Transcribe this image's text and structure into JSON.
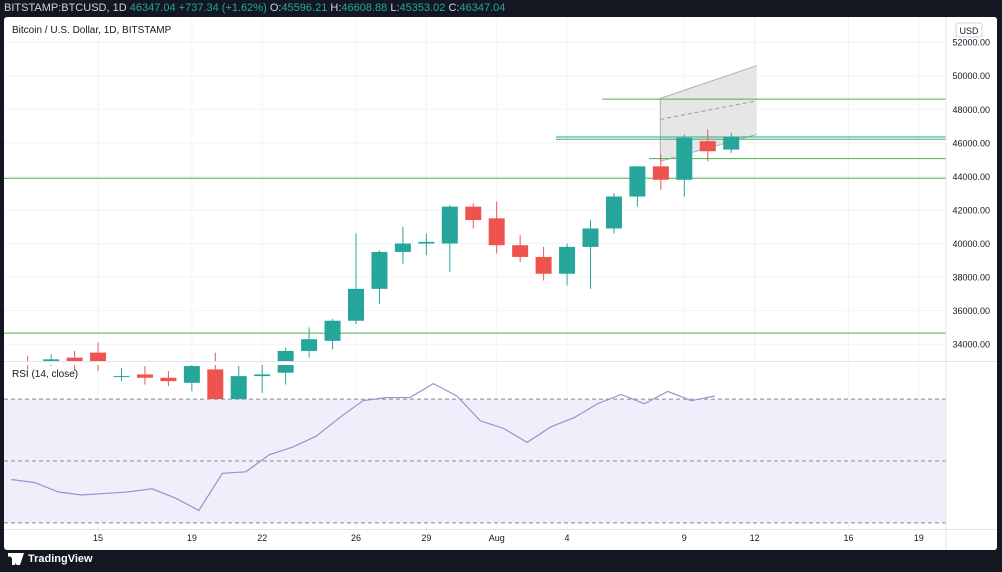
{
  "header": {
    "symbol": "BITSTAMP:BTCUSD, 1D",
    "last": "46347.04",
    "change": "+737.34 (+1.62%)",
    "o_label": "O:",
    "o": "45596.21",
    "h_label": "H:",
    "h": "46608.88",
    "l_label": "L:",
    "l": "45353.02",
    "c_label": "C:",
    "c": "46347.04"
  },
  "legend": "Bitcoin / U.S. Dollar, 1D, BITSTAMP",
  "currency_button": "USD",
  "rsi_label": "RSI (14, close)",
  "brand": "TradingView",
  "colors": {
    "up": "#26a69a",
    "down": "#ef5350",
    "level_line": "#4caf50",
    "rsi_line": "#9c8fce",
    "rsi_band": "#f1eefb"
  },
  "chart_data": [
    {
      "type": "candlestick",
      "ylim": [
        33000,
        53500
      ],
      "price_ticks": [
        34000,
        36000,
        38000,
        40000,
        42000,
        44000,
        46000,
        48000,
        50000,
        52000
      ],
      "x_ticks": [
        {
          "i": 3,
          "label": "15"
        },
        {
          "i": 7,
          "label": "19"
        },
        {
          "i": 10,
          "label": "22"
        },
        {
          "i": 14,
          "label": "26"
        },
        {
          "i": 17,
          "label": "29"
        },
        {
          "i": 20,
          "label": "Aug"
        },
        {
          "i": 23,
          "label": "4"
        },
        {
          "i": 28,
          "label": "9"
        },
        {
          "i": 31,
          "label": "12"
        },
        {
          "i": 35,
          "label": "16"
        },
        {
          "i": 38,
          "label": "19"
        }
      ],
      "candles": [
        {
          "o": 32900,
          "h": 33300,
          "l": 32500,
          "c": 32800
        },
        {
          "o": 33000,
          "h": 33400,
          "l": 32700,
          "c": 33100
        },
        {
          "o": 33200,
          "h": 33600,
          "l": 32400,
          "c": 33000
        },
        {
          "o": 33500,
          "h": 34100,
          "l": 32400,
          "c": 32800
        },
        {
          "o": 32100,
          "h": 32600,
          "l": 31800,
          "c": 32100
        },
        {
          "o": 32200,
          "h": 32700,
          "l": 31600,
          "c": 32000
        },
        {
          "o": 32000,
          "h": 32400,
          "l": 31500,
          "c": 31800
        },
        {
          "o": 31700,
          "h": 32900,
          "l": 31200,
          "c": 32700
        },
        {
          "o": 32500,
          "h": 33500,
          "l": 29300,
          "c": 29800
        },
        {
          "o": 29800,
          "h": 32700,
          "l": 29500,
          "c": 32100
        },
        {
          "o": 32100,
          "h": 32900,
          "l": 31100,
          "c": 32200
        },
        {
          "o": 32300,
          "h": 33800,
          "l": 31600,
          "c": 33600
        },
        {
          "o": 33600,
          "h": 35000,
          "l": 33200,
          "c": 34300
        },
        {
          "o": 34200,
          "h": 35500,
          "l": 33700,
          "c": 35400
        },
        {
          "o": 35400,
          "h": 40600,
          "l": 35200,
          "c": 37300
        },
        {
          "o": 37300,
          "h": 39600,
          "l": 36400,
          "c": 39500
        },
        {
          "o": 39500,
          "h": 41000,
          "l": 38800,
          "c": 40000
        },
        {
          "o": 40000,
          "h": 40600,
          "l": 39300,
          "c": 40100
        },
        {
          "o": 40000,
          "h": 42300,
          "l": 38300,
          "c": 42200
        },
        {
          "o": 42200,
          "h": 42400,
          "l": 40900,
          "c": 41400
        },
        {
          "o": 41500,
          "h": 42500,
          "l": 39400,
          "c": 39900
        },
        {
          "o": 39900,
          "h": 40500,
          "l": 38900,
          "c": 39200
        },
        {
          "o": 39200,
          "h": 39800,
          "l": 37800,
          "c": 38200
        },
        {
          "o": 38200,
          "h": 40000,
          "l": 37500,
          "c": 39800
        },
        {
          "o": 39800,
          "h": 41400,
          "l": 37300,
          "c": 40900
        },
        {
          "o": 40900,
          "h": 43000,
          "l": 40600,
          "c": 42800
        },
        {
          "o": 42800,
          "h": 44600,
          "l": 42200,
          "c": 44600
        },
        {
          "o": 44600,
          "h": 45300,
          "l": 43200,
          "c": 43800
        },
        {
          "o": 43800,
          "h": 46500,
          "l": 42800,
          "c": 46300
        },
        {
          "o": 46100,
          "h": 46800,
          "l": 44900,
          "c": 45500
        },
        {
          "o": 45600,
          "h": 46600,
          "l": 45400,
          "c": 46347
        }
      ],
      "price_levels": [
        {
          "value": 48607.6,
          "label": "48607.60",
          "kind": "level"
        },
        {
          "value": 46347.04,
          "label": "46347.04",
          "kind": "last"
        },
        {
          "value": 46215.3,
          "label": "46215.30",
          "kind": "level"
        },
        {
          "value": 45060.43,
          "label": "45060.43",
          "kind": "level"
        },
        {
          "value": 43889.11,
          "label": "43889.11",
          "kind": "level"
        },
        {
          "value": 34660.31,
          "label": "34660.31",
          "kind": "level"
        }
      ],
      "channel": {
        "start_index": 28,
        "end_index": 31,
        "upper_start": 48650,
        "upper_end": 50600,
        "mid_start": 47400,
        "mid_end": 48500,
        "lower_start": 44900,
        "lower_end": 46500
      }
    },
    {
      "type": "line",
      "name": "RSI (14, close)",
      "ylim": [
        28,
        82
      ],
      "ticks": [
        30.0,
        40.0,
        50.0,
        60.0,
        70.0,
        80.0
      ],
      "levels": [
        70,
        50,
        30
      ],
      "values": [
        44,
        43,
        40,
        39,
        39.5,
        40,
        41,
        38,
        34,
        46,
        46.5,
        52,
        54.5,
        58,
        64,
        69.5,
        70.5,
        70.5,
        75,
        71,
        63,
        60.5,
        56,
        61,
        64,
        68.5,
        71.5,
        68.5,
        72.5,
        69.5,
        71
      ]
    }
  ]
}
